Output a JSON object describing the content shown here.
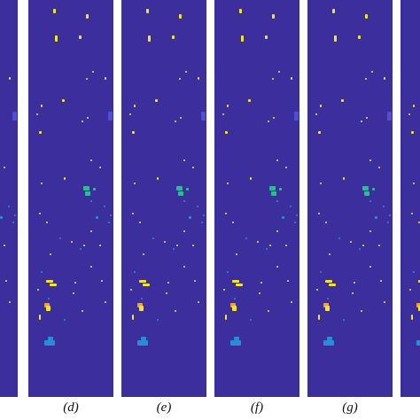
{
  "figure": {
    "panels": [
      {
        "id": "c",
        "caption": ""
      },
      {
        "id": "d",
        "caption": "(d)"
      },
      {
        "id": "e",
        "caption": "(e)"
      },
      {
        "id": "f",
        "caption": "(f)"
      },
      {
        "id": "g",
        "caption": "(g)"
      },
      {
        "id": "h",
        "caption": ""
      }
    ]
  },
  "colors": {
    "background": "#3d2e9e",
    "yellow": "#f2e52a",
    "teal": "#2fb99a",
    "sky": "#2a8bd8",
    "light_purple": "#4f4fd6",
    "orange": "#f0a040"
  }
}
